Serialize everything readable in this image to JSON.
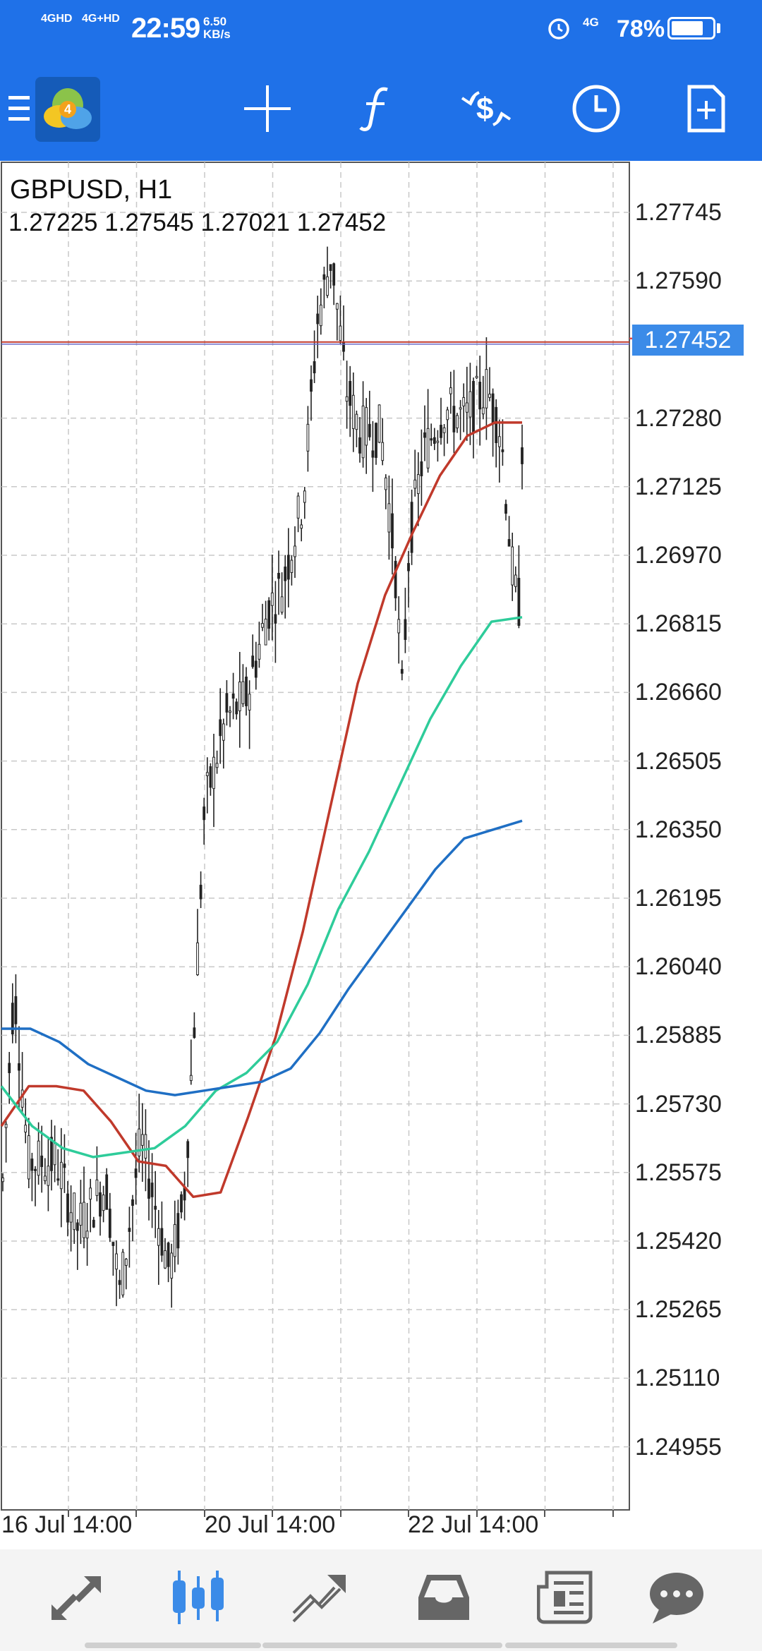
{
  "status_bar": {
    "network_1": "4GHD",
    "network_2": "4G+HD",
    "time": "22:59",
    "speed_value": "6.50",
    "speed_unit": "KB/s",
    "network_right": "4G",
    "battery": "78%",
    "battery_level": 0.78
  },
  "toolbar": {
    "icons": [
      "menu-icon",
      "metatrader-logo",
      "crosshair-icon",
      "function-icon",
      "trade-dollar-icon",
      "clock-icon",
      "new-document-icon"
    ]
  },
  "chart": {
    "symbol": "GBPUSD, H1",
    "ohlc": "1.27225 1.27545 1.27021 1.27452",
    "current_price": "1.27452",
    "y_labels": [
      "1.27745",
      "1.27590",
      "1.27280",
      "1.27125",
      "1.26970",
      "1.26815",
      "1.26660",
      "1.26505",
      "1.26350",
      "1.26195",
      "1.26040",
      "1.25885",
      "1.25730",
      "1.25575",
      "1.25420",
      "1.25265",
      "1.25110",
      "1.24955"
    ],
    "x_labels": [
      "16 Jul 14:00",
      "20 Jul 14:00",
      "22 Jul 14:00"
    ]
  },
  "chart_data": {
    "type": "line",
    "title": "GBPUSD, H1",
    "ylim": [
      1.2487,
      1.2785
    ],
    "y_ticks": [
      1.27745,
      1.2759,
      1.2728,
      1.27125,
      1.2697,
      1.26815,
      1.2666,
      1.26505,
      1.2635,
      1.26195,
      1.2604,
      1.25885,
      1.2573,
      1.25575,
      1.2542,
      1.25265,
      1.2511,
      1.24955
    ],
    "x_ticks": [
      "16 Jul 14:00",
      "20 Jul 14:00",
      "22 Jul 14:00"
    ],
    "current_price": 1.27452,
    "grid": true,
    "series": [
      {
        "values": [
          1.2568,
          1.2577,
          1.2577,
          1.2576,
          1.2569,
          1.256,
          1.2559,
          1.2552,
          1.2553,
          1.257,
          1.2588,
          1.2612,
          1.264,
          1.2668,
          1.2688,
          1.2702,
          1.2715,
          1.2724,
          1.2727,
          1.2727
        ],
        "color": "#c0392b"
      },
      {
        "values": [
          1.2577,
          1.2568,
          1.2563,
          1.2561,
          1.2562,
          1.2563,
          1.2568,
          1.2576,
          1.258,
          1.2587,
          1.26,
          1.2617,
          1.263,
          1.2645,
          1.266,
          1.2672,
          1.2682,
          1.2683
        ],
        "color": "#2ecc9a"
      },
      {
        "values": [
          1.259,
          1.259,
          1.2587,
          1.2582,
          1.2579,
          1.2576,
          1.2575,
          1.2576,
          1.2577,
          1.2578,
          1.2581,
          1.2589,
          1.2599,
          1.2608,
          1.2617,
          1.2626,
          1.2633,
          1.2635,
          1.2637
        ],
        "color": "#1f6fc4"
      }
    ]
  },
  "bottom_nav": {
    "icons": [
      "quotes-icon",
      "chart-icon",
      "trade-icon",
      "history-icon",
      "news-icon",
      "chat-icon"
    ]
  }
}
